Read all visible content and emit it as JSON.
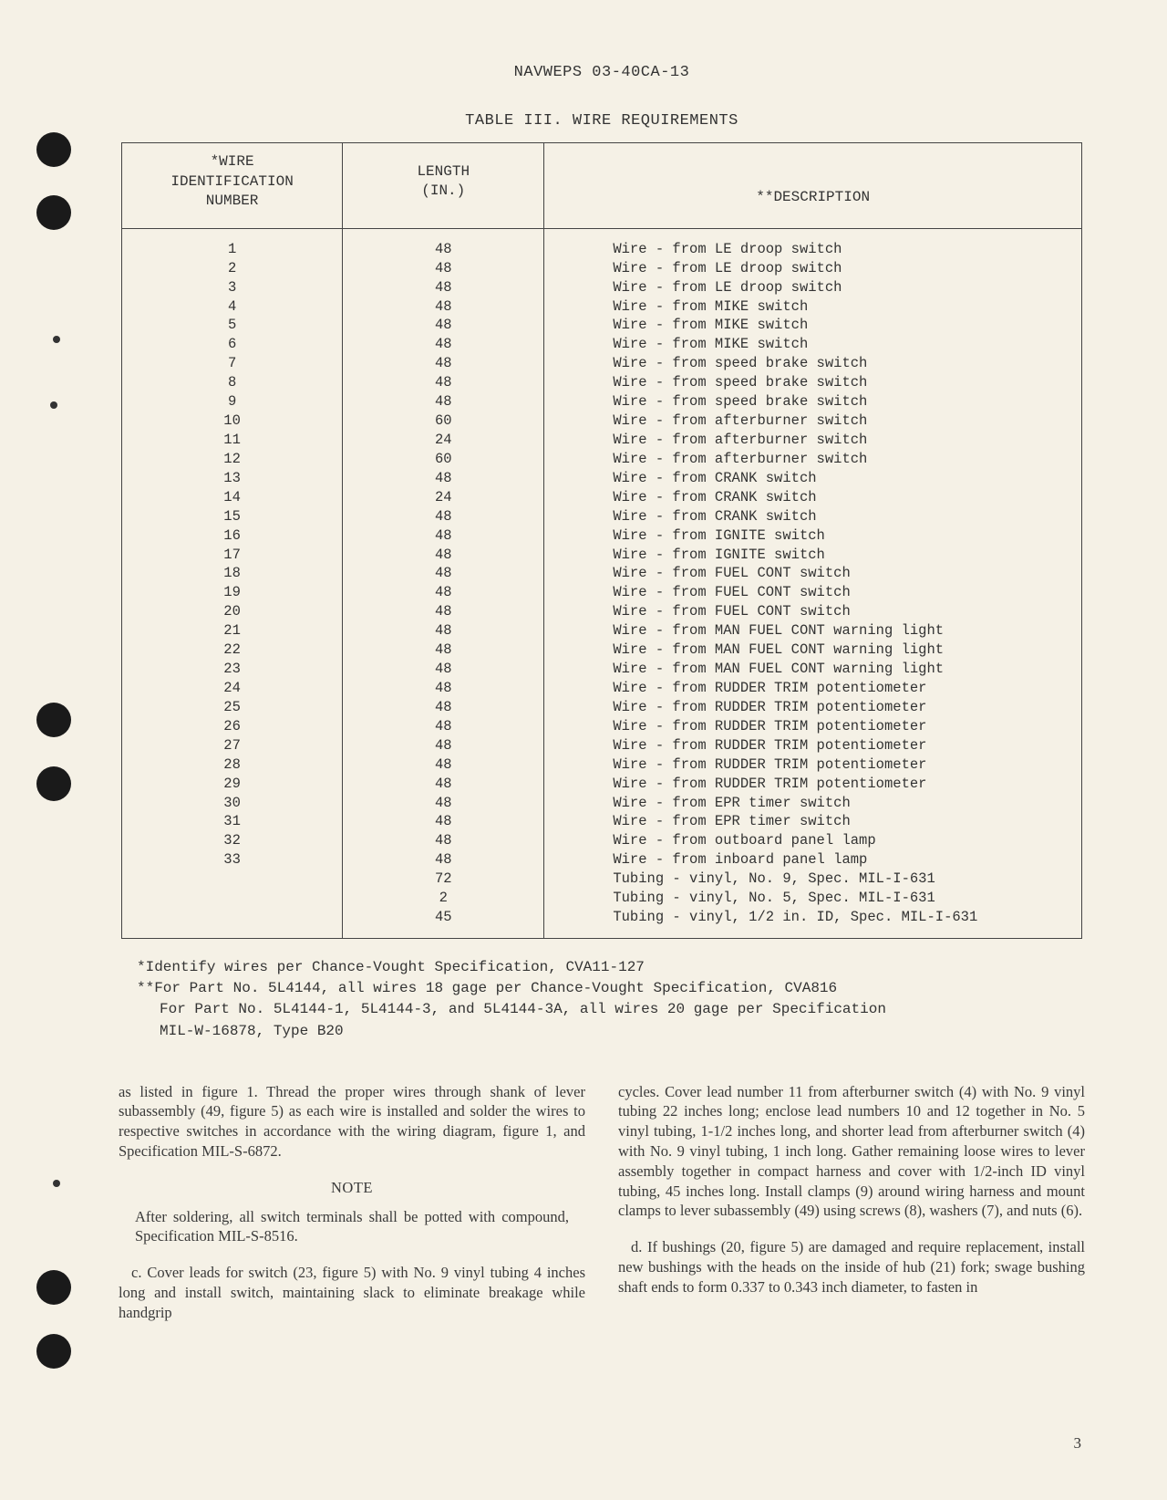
{
  "header": "NAVWEPS 03-40CA-13",
  "tableTitle": "TABLE III.  WIRE REQUIREMENTS",
  "columns": {
    "id": "*WIRE\nIDENTIFICATION\nNUMBER",
    "length": "LENGTH\n(IN.)",
    "description": "**DESCRIPTION"
  },
  "rows": [
    {
      "id": "1",
      "len": "48",
      "desc": "Wire - from LE droop switch"
    },
    {
      "id": "2",
      "len": "48",
      "desc": "Wire - from LE droop switch"
    },
    {
      "id": "3",
      "len": "48",
      "desc": "Wire - from LE droop switch"
    },
    {
      "id": "4",
      "len": "48",
      "desc": "Wire - from MIKE switch"
    },
    {
      "id": "5",
      "len": "48",
      "desc": "Wire - from MIKE switch"
    },
    {
      "id": "6",
      "len": "48",
      "desc": "Wire - from MIKE switch"
    },
    {
      "id": "7",
      "len": "48",
      "desc": "Wire - from speed brake switch"
    },
    {
      "id": "8",
      "len": "48",
      "desc": "Wire - from speed brake switch"
    },
    {
      "id": "9",
      "len": "48",
      "desc": "Wire - from speed brake switch"
    },
    {
      "id": "10",
      "len": "60",
      "desc": "Wire - from afterburner switch"
    },
    {
      "id": "11",
      "len": "24",
      "desc": "Wire - from afterburner switch"
    },
    {
      "id": "12",
      "len": "60",
      "desc": "Wire - from afterburner switch"
    },
    {
      "id": "13",
      "len": "48",
      "desc": "Wire - from CRANK switch"
    },
    {
      "id": "14",
      "len": "24",
      "desc": "Wire - from CRANK switch"
    },
    {
      "id": "15",
      "len": "48",
      "desc": "Wire - from CRANK switch"
    },
    {
      "id": "16",
      "len": "48",
      "desc": "Wire - from IGNITE switch"
    },
    {
      "id": "17",
      "len": "48",
      "desc": "Wire - from IGNITE switch"
    },
    {
      "id": "18",
      "len": "48",
      "desc": "Wire - from FUEL CONT switch"
    },
    {
      "id": "19",
      "len": "48",
      "desc": "Wire - from FUEL CONT switch"
    },
    {
      "id": "20",
      "len": "48",
      "desc": "Wire - from FUEL CONT switch"
    },
    {
      "id": "21",
      "len": "48",
      "desc": "Wire - from MAN FUEL CONT warning light"
    },
    {
      "id": "22",
      "len": "48",
      "desc": "Wire - from MAN FUEL CONT warning light"
    },
    {
      "id": "23",
      "len": "48",
      "desc": "Wire - from MAN FUEL CONT warning light"
    },
    {
      "id": "24",
      "len": "48",
      "desc": "Wire - from RUDDER TRIM potentiometer"
    },
    {
      "id": "25",
      "len": "48",
      "desc": "Wire - from RUDDER TRIM potentiometer"
    },
    {
      "id": "26",
      "len": "48",
      "desc": "Wire - from RUDDER TRIM potentiometer"
    },
    {
      "id": "27",
      "len": "48",
      "desc": "Wire - from RUDDER TRIM potentiometer"
    },
    {
      "id": "28",
      "len": "48",
      "desc": "Wire - from RUDDER TRIM potentiometer"
    },
    {
      "id": "29",
      "len": "48",
      "desc": "Wire - from RUDDER TRIM potentiometer"
    },
    {
      "id": "30",
      "len": "48",
      "desc": "Wire - from EPR timer switch"
    },
    {
      "id": "31",
      "len": "48",
      "desc": "Wire - from EPR timer switch"
    },
    {
      "id": "32",
      "len": "48",
      "desc": "Wire - from outboard panel lamp"
    },
    {
      "id": "33",
      "len": "48",
      "desc": "Wire - from inboard panel lamp"
    },
    {
      "id": "",
      "len": "72",
      "desc": "Tubing - vinyl, No. 9, Spec. MIL-I-631"
    },
    {
      "id": "",
      "len": "2",
      "desc": "Tubing - vinyl, No. 5, Spec. MIL-I-631"
    },
    {
      "id": "",
      "len": "45",
      "desc": "Tubing - vinyl, 1/2 in. ID, Spec. MIL-I-631"
    }
  ],
  "footnotes": {
    "n1": " *Identify wires per Chance-Vought Specification, CVA11-127",
    "n2": "**For Part No. 5L4144, all wires 18 gage per Chance-Vought Specification, CVA816",
    "n3": "For Part No. 5L4144-1, 5L4144-3, and 5L4144-3A, all wires 20 gage per Specification",
    "n4": "MIL-W-16878, Type B20"
  },
  "body": {
    "leftTop": "as listed in figure 1. Thread the proper wires through shank of lever subassembly (49, figure 5) as each wire is installed and solder the wires to respective switches in accordance with the wiring diagram, figure 1, and Specification MIL-S-6872.",
    "noteHead": "NOTE",
    "noteBody": "After soldering, all switch terminals shall be potted with compound, Specification MIL-S-8516.",
    "leftC": "c. Cover leads for switch (23, figure 5) with No. 9 vinyl tubing 4 inches long and install switch, main­taining slack to eliminate breakage while handgrip",
    "rightTop": "cycles. Cover lead number 11 from afterburner switch (4) with No. 9 vinyl tubing 22 inches long; enclose lead numbers 10 and 12 together in No. 5 vinyl tubing, 1-1/2 inches long, and shorter lead from afterburner switch (4) with No. 9 vinyl tubing, 1 inch long. Gather remaining loose wires to lever assembly together in compact harness and cover with 1/2-inch ID vinyl tubing, 45 inches long. Install clamps (9) around wiring harness and mount clamps to lever subassembly (49) using screws (8), washers (7), and nuts (6).",
    "rightD": "d. If bushings (20, figure 5) are damaged and require replacement, install new bushings with the heads on the inside of hub (21) fork; swage bushing shaft ends to form 0.337 to 0.343 inch diameter, to fasten in"
  },
  "pageNumber": "3"
}
